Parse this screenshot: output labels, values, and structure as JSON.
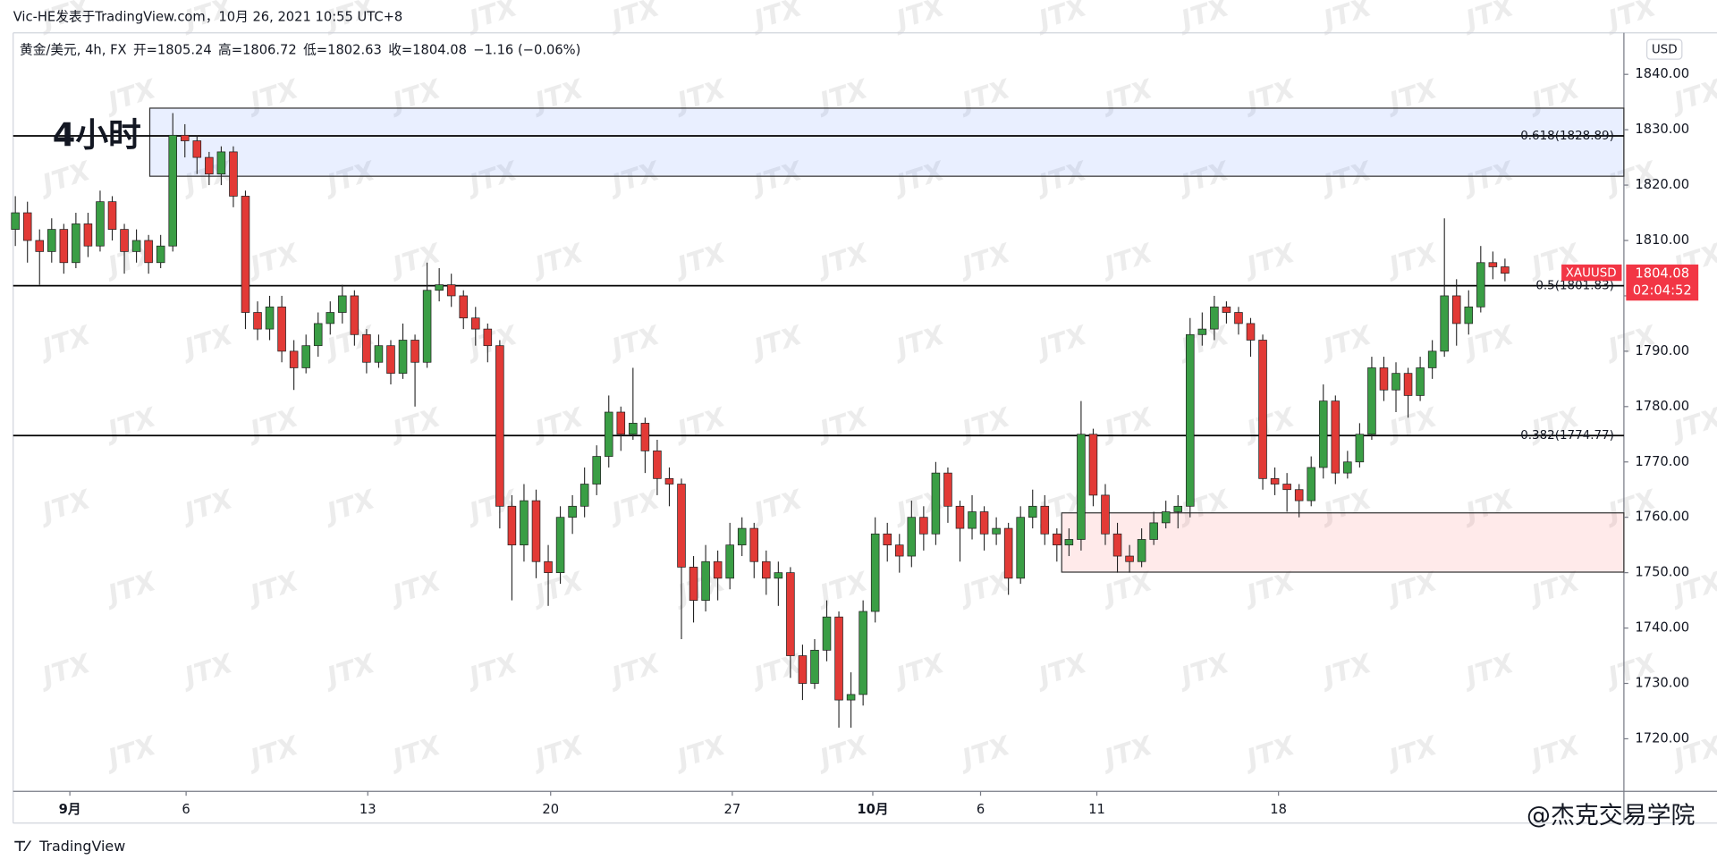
{
  "header": {
    "byline": "Vic-HE发表于TradingView.com，10月 26, 2021 10:55 UTC+8",
    "legend": [
      "黄金/美元, 4h, FX",
      "开=1805.24",
      "高=1806.72",
      "低=1802.63",
      "收=1804.08",
      "−1.16 (−0.06%)"
    ]
  },
  "chart_data": {
    "type": "candlestick",
    "annotation": "4小时",
    "currency": "USD",
    "symbol": "XAUUSD",
    "countdown": "02:04:52",
    "up_color": "#3a9e45",
    "down_color": "#e23a36",
    "ylim": [
      1710.5,
      1847.5
    ],
    "yticks": [
      {
        "value": 1720,
        "label": "1720.00"
      },
      {
        "value": 1730,
        "label": "1730.00"
      },
      {
        "value": 1740,
        "label": "1740.00"
      },
      {
        "value": 1750,
        "label": "1750.00"
      },
      {
        "value": 1760,
        "label": "1760.00"
      },
      {
        "value": 1770,
        "label": "1770.00"
      },
      {
        "value": 1780,
        "label": "1780.00"
      },
      {
        "value": 1790,
        "label": "1790.00"
      },
      {
        "value": 1800,
        "label": "1800.00"
      },
      {
        "value": 1810,
        "label": "1810.00"
      },
      {
        "value": 1820,
        "label": "1820.00"
      },
      {
        "value": 1830,
        "label": "1830.00"
      },
      {
        "value": 1840,
        "label": "1840.00"
      }
    ],
    "xticks": [
      {
        "value": 4.5,
        "label": "9月"
      },
      {
        "value": 14.1,
        "label": "6"
      },
      {
        "value": 29.1,
        "label": "13"
      },
      {
        "value": 44.2,
        "label": "20"
      },
      {
        "value": 59.2,
        "label": "27"
      },
      {
        "value": 70.8,
        "label": "10月"
      },
      {
        "value": 79.7,
        "label": "6"
      },
      {
        "value": 89.3,
        "label": "11"
      },
      {
        "value": 104.3,
        "label": "18"
      }
    ],
    "levels": [
      {
        "label": "0.618(1828.89)",
        "price": 1828.89
      },
      {
        "label": "0.5(1801.83)",
        "price": 1801.83
      },
      {
        "label": "0.382(1774.77)",
        "price": 1774.77
      }
    ],
    "zones": [
      {
        "from": 11.1,
        "top": 1833.9,
        "bottom": 1821.6,
        "color": "rgba(41,98,255,0.10)"
      },
      {
        "from": 86.4,
        "top": 1760.8,
        "bottom": 1750.1,
        "color": "rgba(255,82,82,0.12)"
      }
    ],
    "candles": [
      [
        1812,
        1818,
        1809,
        1815
      ],
      [
        1815,
        1817,
        1806,
        1810
      ],
      [
        1810,
        1812,
        1802,
        1808
      ],
      [
        1808,
        1814,
        1806,
        1812
      ],
      [
        1812,
        1813,
        1804,
        1806
      ],
      [
        1806,
        1815,
        1805,
        1813
      ],
      [
        1813,
        1815,
        1807,
        1809
      ],
      [
        1809,
        1819,
        1808,
        1817
      ],
      [
        1817,
        1818,
        1810,
        1812
      ],
      [
        1812,
        1813,
        1804,
        1808
      ],
      [
        1808,
        1812,
        1806,
        1810
      ],
      [
        1810,
        1811,
        1804,
        1806
      ],
      [
        1806,
        1811,
        1805,
        1809
      ],
      [
        1809,
        1833,
        1808,
        1829
      ],
      [
        1829,
        1831,
        1825,
        1828
      ],
      [
        1828,
        1829,
        1822,
        1825
      ],
      [
        1825,
        1826,
        1820,
        1822
      ],
      [
        1822,
        1827,
        1820,
        1826
      ],
      [
        1826,
        1827,
        1816,
        1818
      ],
      [
        1818,
        1819,
        1794,
        1797
      ],
      [
        1797,
        1799,
        1792,
        1794
      ],
      [
        1794,
        1800,
        1792,
        1798
      ],
      [
        1798,
        1800,
        1788,
        1790
      ],
      [
        1790,
        1792,
        1783,
        1787
      ],
      [
        1787,
        1793,
        1786,
        1791
      ],
      [
        1791,
        1797,
        1789,
        1795
      ],
      [
        1795,
        1799,
        1793,
        1797
      ],
      [
        1797,
        1802,
        1795,
        1800
      ],
      [
        1800,
        1801,
        1791,
        1793
      ],
      [
        1793,
        1794,
        1786,
        1788
      ],
      [
        1788,
        1793,
        1787,
        1791
      ],
      [
        1791,
        1792,
        1784,
        1786
      ],
      [
        1786,
        1795,
        1785,
        1792
      ],
      [
        1792,
        1793,
        1780,
        1788
      ],
      [
        1788,
        1806,
        1787,
        1801
      ],
      [
        1801,
        1805,
        1799,
        1802
      ],
      [
        1802,
        1804,
        1798,
        1800
      ],
      [
        1800,
        1801,
        1794,
        1796
      ],
      [
        1796,
        1798,
        1791,
        1794
      ],
      [
        1794,
        1795,
        1788,
        1791
      ],
      [
        1791,
        1792,
        1758,
        1762
      ],
      [
        1762,
        1764,
        1745,
        1755
      ],
      [
        1755,
        1766,
        1752,
        1763
      ],
      [
        1763,
        1765,
        1749,
        1752
      ],
      [
        1752,
        1755,
        1744,
        1750
      ],
      [
        1750,
        1762,
        1748,
        1760
      ],
      [
        1760,
        1764,
        1757,
        1762
      ],
      [
        1762,
        1769,
        1760,
        1766
      ],
      [
        1766,
        1773,
        1764,
        1771
      ],
      [
        1771,
        1782,
        1769,
        1779
      ],
      [
        1779,
        1780,
        1772,
        1775
      ],
      [
        1775,
        1787,
        1774,
        1777
      ],
      [
        1777,
        1778,
        1768,
        1772
      ],
      [
        1772,
        1774,
        1764,
        1767
      ],
      [
        1767,
        1769,
        1762,
        1766
      ],
      [
        1766,
        1767,
        1738,
        1751
      ],
      [
        1751,
        1753,
        1741,
        1745
      ],
      [
        1745,
        1755,
        1743,
        1752
      ],
      [
        1752,
        1754,
        1745,
        1749
      ],
      [
        1749,
        1759,
        1747,
        1755
      ],
      [
        1755,
        1760,
        1753,
        1758
      ],
      [
        1758,
        1759,
        1749,
        1752
      ],
      [
        1752,
        1754,
        1746,
        1749
      ],
      [
        1749,
        1752,
        1744,
        1750
      ],
      [
        1750,
        1751,
        1731,
        1735
      ],
      [
        1735,
        1737,
        1727,
        1730
      ],
      [
        1730,
        1738,
        1729,
        1736
      ],
      [
        1736,
        1745,
        1734,
        1742
      ],
      [
        1742,
        1743,
        1722,
        1727
      ],
      [
        1727,
        1732,
        1722,
        1728
      ],
      [
        1728,
        1745,
        1726,
        1743
      ],
      [
        1743,
        1760,
        1741,
        1757
      ],
      [
        1757,
        1759,
        1752,
        1755
      ],
      [
        1755,
        1757,
        1750,
        1753
      ],
      [
        1753,
        1763,
        1751,
        1760
      ],
      [
        1760,
        1762,
        1754,
        1757
      ],
      [
        1757,
        1770,
        1755,
        1768
      ],
      [
        1768,
        1769,
        1759,
        1762
      ],
      [
        1762,
        1763,
        1752,
        1758
      ],
      [
        1758,
        1764,
        1756,
        1761
      ],
      [
        1761,
        1762,
        1754,
        1757
      ],
      [
        1757,
        1760,
        1755,
        1758
      ],
      [
        1758,
        1759,
        1746,
        1749
      ],
      [
        1749,
        1762,
        1748,
        1760
      ],
      [
        1760,
        1765,
        1758,
        1762
      ],
      [
        1762,
        1764,
        1755,
        1757
      ],
      [
        1757,
        1758,
        1752,
        1755
      ],
      [
        1755,
        1758,
        1753,
        1756
      ],
      [
        1756,
        1781,
        1754,
        1775
      ],
      [
        1775,
        1776,
        1762,
        1764
      ],
      [
        1764,
        1766,
        1755,
        1757
      ],
      [
        1757,
        1759,
        1750,
        1753
      ],
      [
        1753,
        1755,
        1750,
        1752
      ],
      [
        1752,
        1758,
        1751,
        1756
      ],
      [
        1756,
        1761,
        1755,
        1759
      ],
      [
        1759,
        1763,
        1758,
        1761
      ],
      [
        1761,
        1764,
        1758,
        1762
      ],
      [
        1762,
        1796,
        1760,
        1793
      ],
      [
        1793,
        1797,
        1791,
        1794
      ],
      [
        1794,
        1800,
        1792,
        1798
      ],
      [
        1798,
        1799,
        1795,
        1797
      ],
      [
        1797,
        1798,
        1793,
        1795
      ],
      [
        1795,
        1796,
        1789,
        1792
      ],
      [
        1792,
        1793,
        1765,
        1767
      ],
      [
        1767,
        1769,
        1764,
        1766
      ],
      [
        1766,
        1768,
        1761,
        1765
      ],
      [
        1765,
        1766,
        1760,
        1763
      ],
      [
        1763,
        1771,
        1762,
        1769
      ],
      [
        1769,
        1784,
        1767,
        1781
      ],
      [
        1781,
        1782,
        1766,
        1768
      ],
      [
        1768,
        1772,
        1767,
        1770
      ],
      [
        1770,
        1777,
        1769,
        1775
      ],
      [
        1775,
        1789,
        1774,
        1787
      ],
      [
        1787,
        1789,
        1781,
        1783
      ],
      [
        1783,
        1788,
        1779,
        1786
      ],
      [
        1786,
        1787,
        1778,
        1782
      ],
      [
        1782,
        1789,
        1781,
        1787
      ],
      [
        1787,
        1792,
        1785,
        1790
      ],
      [
        1790,
        1814,
        1789,
        1800
      ],
      [
        1800,
        1803,
        1791,
        1795
      ],
      [
        1795,
        1801,
        1793,
        1798
      ],
      [
        1798,
        1809,
        1797,
        1806
      ],
      [
        1806,
        1808,
        1803,
        1805.24
      ],
      [
        1805.24,
        1806.72,
        1802.63,
        1804.08
      ]
    ]
  },
  "footer": {
    "brand": "TradingView",
    "watermark": "JTX",
    "credit": "@杰克交易学院"
  }
}
